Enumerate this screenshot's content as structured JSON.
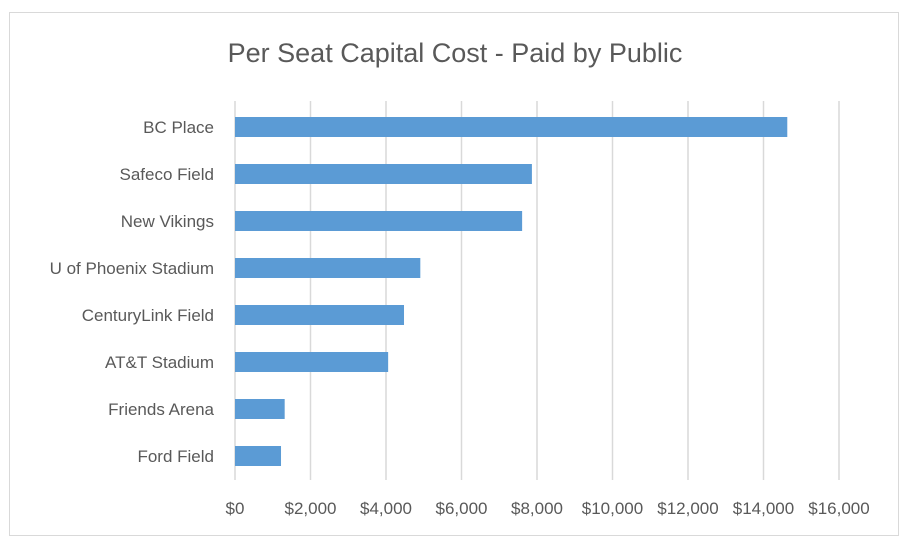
{
  "chart_data": {
    "type": "bar",
    "orientation": "horizontal",
    "title": "Per Seat Capital Cost - Paid by Public",
    "categories": [
      "BC Place",
      "Safeco Field",
      "New Vikings",
      "U of Phoenix Stadium",
      "CenturyLink Field",
      "AT&T Stadium",
      "Friends Arena",
      "Ford Field"
    ],
    "values": [
      14630,
      7865,
      7606,
      4909,
      4477,
      4057,
      1316,
      1219
    ],
    "xlim": [
      0,
      16000
    ],
    "xticks": [
      0,
      2000,
      4000,
      6000,
      8000,
      10000,
      12000,
      14000,
      16000
    ],
    "xtick_labels": [
      "$0",
      "$2,000",
      "$4,000",
      "$6,000",
      "$8,000",
      "$10,000",
      "$12,000",
      "$14,000",
      "$16,000"
    ],
    "xlabel": "",
    "ylabel": "",
    "grid": "vertical",
    "legend": "none",
    "bar_color": "#5b9bd5",
    "grid_color": "#d9d9d9"
  }
}
